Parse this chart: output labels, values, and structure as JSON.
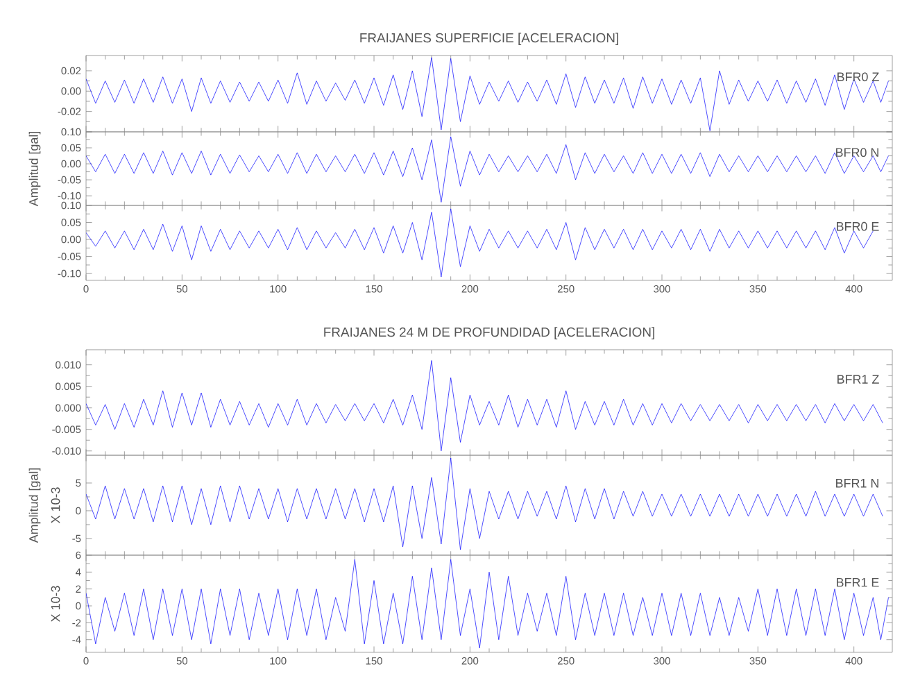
{
  "chart_data": [
    {
      "type": "line",
      "title": "FRAIJANES SUPERFICIE [ACELERACION]",
      "tick_labels": "y",
      "grid": false,
      "x": [
        0,
        5,
        10,
        15,
        20,
        25,
        30,
        35,
        40,
        45,
        50,
        55,
        60,
        65,
        70,
        75,
        80,
        85,
        90,
        95,
        100,
        105,
        110,
        115,
        120,
        125,
        130,
        135,
        140,
        145,
        150,
        155,
        160,
        165,
        170,
        175,
        180,
        185,
        190,
        195,
        200,
        205,
        210,
        215,
        220,
        225,
        230,
        235,
        240,
        245,
        250,
        255,
        260,
        265,
        270,
        275,
        280,
        285,
        290,
        295,
        300,
        305,
        310,
        315,
        320,
        325,
        330,
        335,
        340,
        345,
        350,
        355,
        360,
        365,
        370,
        375,
        380,
        385,
        390,
        395,
        400,
        405,
        410,
        414,
        418
      ],
      "xlim": [
        0,
        420
      ],
      "xticks": [
        0,
        50,
        100,
        150,
        200,
        250,
        300,
        350,
        400
      ],
      "ylim": [
        -0.04,
        0.035
      ],
      "yticks": [
        {
          "value": -0.04,
          "label": null
        },
        {
          "value": -0.02,
          "label": "-0.02"
        },
        {
          "value": 0,
          "label": "0.00"
        },
        {
          "value": 0.02,
          "label": "0.02"
        }
      ],
      "series": [
        {
          "name": "BFR0 Z",
          "color": "#0000ff",
          "values": [
            0.012,
            -0.012,
            0.01,
            -0.011,
            0.011,
            -0.012,
            0.012,
            -0.011,
            0.014,
            -0.012,
            0.012,
            -0.02,
            0.013,
            -0.012,
            0.01,
            -0.011,
            0.009,
            -0.01,
            0.009,
            -0.01,
            0.011,
            -0.012,
            0.018,
            -0.013,
            0.01,
            -0.01,
            0.008,
            -0.009,
            0.011,
            -0.012,
            0.013,
            -0.014,
            0.016,
            -0.018,
            0.02,
            -0.025,
            0.033,
            -0.038,
            0.032,
            -0.03,
            0.015,
            -0.013,
            0.009,
            -0.01,
            0.01,
            -0.011,
            0.009,
            -0.01,
            0.011,
            -0.013,
            0.017,
            -0.016,
            0.014,
            -0.012,
            0.011,
            -0.012,
            0.013,
            -0.017,
            0.014,
            -0.012,
            0.012,
            -0.013,
            0.011,
            -0.012,
            0.013,
            -0.039,
            0.02,
            -0.013,
            0.011,
            -0.01,
            0.01,
            -0.01,
            0.011,
            -0.012,
            0.01,
            -0.011,
            0.012,
            -0.014,
            0.016,
            -0.018,
            0.012,
            -0.011,
            0.01,
            -0.011,
            0.01
          ]
        }
      ]
    },
    {
      "type": "line",
      "ylabel": "Amplitud [gal]",
      "tick_labels": "y",
      "grid": false,
      "x": [
        0,
        5,
        10,
        15,
        20,
        25,
        30,
        35,
        40,
        45,
        50,
        55,
        60,
        65,
        70,
        75,
        80,
        85,
        90,
        95,
        100,
        105,
        110,
        115,
        120,
        125,
        130,
        135,
        140,
        145,
        150,
        155,
        160,
        165,
        170,
        175,
        180,
        185,
        190,
        195,
        200,
        205,
        210,
        215,
        220,
        225,
        230,
        235,
        240,
        245,
        250,
        255,
        260,
        265,
        270,
        275,
        280,
        285,
        290,
        295,
        300,
        305,
        310,
        315,
        320,
        325,
        330,
        335,
        340,
        345,
        350,
        355,
        360,
        365,
        370,
        375,
        380,
        385,
        390,
        395,
        400,
        405,
        410,
        414,
        418
      ],
      "xlim": [
        0,
        420
      ],
      "xticks": [
        0,
        50,
        100,
        150,
        200,
        250,
        300,
        350,
        400
      ],
      "ylim": [
        -0.13,
        0.1
      ],
      "yticks": [
        {
          "value": -0.1,
          "label": "-0.10"
        },
        {
          "value": -0.05,
          "label": "-0.05"
        },
        {
          "value": 0,
          "label": "0.00"
        },
        {
          "value": 0.05,
          "label": "0.05"
        },
        {
          "value": 0.1,
          "label": "0.10"
        }
      ],
      "series": [
        {
          "name": "BFR0 N",
          "color": "#0000ff",
          "values": [
            0.025,
            -0.025,
            0.03,
            -0.03,
            0.03,
            -0.03,
            0.035,
            -0.03,
            0.04,
            -0.035,
            0.035,
            -0.03,
            0.04,
            -0.035,
            0.03,
            -0.03,
            0.028,
            -0.025,
            0.025,
            -0.025,
            0.03,
            -0.03,
            0.035,
            -0.03,
            0.03,
            -0.025,
            0.025,
            -0.025,
            0.03,
            -0.03,
            0.035,
            -0.035,
            0.04,
            -0.04,
            0.05,
            -0.05,
            0.075,
            -0.12,
            0.085,
            -0.07,
            0.04,
            -0.035,
            0.03,
            -0.025,
            0.025,
            -0.025,
            0.025,
            -0.025,
            0.03,
            -0.03,
            0.06,
            -0.05,
            0.035,
            -0.03,
            0.03,
            -0.025,
            0.025,
            -0.03,
            0.035,
            -0.03,
            0.03,
            -0.03,
            0.03,
            -0.03,
            0.035,
            -0.04,
            0.03,
            -0.025,
            0.025,
            -0.025,
            0.025,
            -0.025,
            0.025,
            -0.025,
            0.025,
            -0.025,
            0.025,
            -0.03,
            0.035,
            -0.03,
            0.025,
            -0.025,
            0.025,
            -0.025,
            0.025
          ]
        }
      ]
    },
    {
      "type": "line",
      "grid": false,
      "x": [
        0,
        5,
        10,
        15,
        20,
        25,
        30,
        35,
        40,
        45,
        50,
        55,
        60,
        65,
        70,
        75,
        80,
        85,
        90,
        95,
        100,
        105,
        110,
        115,
        120,
        125,
        130,
        135,
        140,
        145,
        150,
        155,
        160,
        165,
        170,
        175,
        180,
        185,
        190,
        195,
        200,
        205,
        210,
        215,
        220,
        225,
        230,
        235,
        240,
        245,
        250,
        255,
        260,
        265,
        270,
        275,
        280,
        285,
        290,
        295,
        300,
        305,
        310,
        315,
        320,
        325,
        330,
        335,
        340,
        345,
        350,
        355,
        360,
        365,
        370,
        375,
        380,
        385,
        390,
        395,
        400,
        405,
        410
      ],
      "xlim": [
        0,
        420
      ],
      "xticks": [
        0,
        50,
        100,
        150,
        200,
        250,
        300,
        350,
        400
      ],
      "ylim": [
        -0.12,
        0.1
      ],
      "yticks": [
        {
          "value": -0.1,
          "label": "-0.10"
        },
        {
          "value": -0.05,
          "label": "-0.05"
        },
        {
          "value": 0,
          "label": "0.00"
        },
        {
          "value": 0.05,
          "label": "0.05"
        },
        {
          "value": 0.1,
          "label": "0.10"
        }
      ],
      "series": [
        {
          "name": "BFR0 E",
          "color": "#0000ff",
          "values": [
            0.02,
            -0.02,
            0.025,
            -0.025,
            0.025,
            -0.03,
            0.03,
            -0.03,
            0.045,
            -0.035,
            0.04,
            -0.06,
            0.04,
            -0.035,
            0.03,
            -0.03,
            0.025,
            -0.025,
            0.025,
            -0.025,
            0.03,
            -0.03,
            0.035,
            -0.03,
            0.025,
            -0.025,
            0.02,
            -0.025,
            0.03,
            -0.03,
            0.035,
            -0.04,
            0.04,
            -0.04,
            0.05,
            -0.06,
            0.08,
            -0.11,
            0.09,
            -0.08,
            0.04,
            -0.035,
            0.03,
            -0.025,
            0.025,
            -0.025,
            0.025,
            -0.025,
            0.03,
            -0.03,
            0.05,
            -0.06,
            0.035,
            -0.03,
            0.03,
            -0.025,
            0.03,
            -0.03,
            0.03,
            -0.03,
            0.025,
            -0.025,
            0.03,
            -0.03,
            0.03,
            -0.035,
            0.03,
            -0.025,
            0.025,
            -0.025,
            0.025,
            -0.025,
            0.025,
            -0.025,
            0.025,
            -0.025,
            0.025,
            -0.03,
            0.035,
            -0.04,
            0.025,
            -0.025,
            0.025
          ]
        }
      ]
    },
    {
      "type": "line",
      "title": "FRAIJANES 24 M DE PROFUNDIDAD [ACELERACION]",
      "tick_labels": "y",
      "grid": false,
      "x": [
        0,
        5,
        10,
        15,
        20,
        25,
        30,
        35,
        40,
        45,
        50,
        55,
        60,
        65,
        70,
        75,
        80,
        85,
        90,
        95,
        100,
        105,
        110,
        115,
        120,
        125,
        130,
        135,
        140,
        145,
        150,
        155,
        160,
        165,
        170,
        175,
        180,
        185,
        190,
        195,
        200,
        205,
        210,
        215,
        220,
        225,
        230,
        235,
        240,
        245,
        250,
        255,
        260,
        265,
        270,
        275,
        280,
        285,
        290,
        295,
        300,
        305,
        310,
        315,
        320,
        325,
        330,
        335,
        340,
        345,
        350,
        355,
        360,
        365,
        370,
        375,
        380,
        385,
        390,
        395,
        400,
        405,
        410,
        415
      ],
      "xlim": [
        0,
        420
      ],
      "xticks": [
        0,
        50,
        100,
        150,
        200,
        250,
        300,
        350,
        400
      ],
      "ylim": [
        -0.011,
        0.0135
      ],
      "yticks": [
        {
          "value": -0.01,
          "label": "-0.010"
        },
        {
          "value": -0.005,
          "label": "-0.005"
        },
        {
          "value": 0,
          "label": "0.000"
        },
        {
          "value": 0.005,
          "label": "0.005"
        },
        {
          "value": 0.01,
          "label": "0.010"
        }
      ],
      "series": [
        {
          "name": "BFR1 Z",
          "color": "#0000ff",
          "values": [
            0.001,
            -0.004,
            0.0008,
            -0.005,
            0.001,
            -0.0045,
            0.002,
            -0.004,
            0.004,
            -0.0045,
            0.0035,
            -0.004,
            0.0035,
            -0.0045,
            0.002,
            -0.004,
            0.0015,
            -0.004,
            0.001,
            -0.0045,
            0.001,
            -0.004,
            0.002,
            -0.004,
            0.001,
            -0.0035,
            0.0008,
            -0.003,
            0.001,
            -0.003,
            0.001,
            -0.0035,
            0.002,
            -0.004,
            0.003,
            -0.005,
            0.011,
            -0.01,
            0.007,
            -0.008,
            0.003,
            -0.004,
            0.0015,
            -0.004,
            0.003,
            -0.0045,
            0.002,
            -0.004,
            0.002,
            -0.0045,
            0.004,
            -0.005,
            0.0015,
            -0.004,
            0.0015,
            -0.004,
            0.002,
            -0.004,
            0.001,
            -0.004,
            0.001,
            -0.0035,
            0.001,
            -0.003,
            0.0008,
            -0.003,
            0.0008,
            -0.003,
            0.0008,
            -0.0035,
            0.0008,
            -0.003,
            0.0008,
            -0.003,
            0.0008,
            -0.003,
            0.0008,
            -0.0035,
            0.001,
            -0.003,
            0.0008,
            -0.003,
            0.0008,
            -0.0035
          ]
        }
      ]
    },
    {
      "type": "line",
      "ylabel": "Amplitud [gal]",
      "annotations": [
        "X 10-3"
      ],
      "tick_labels": "y",
      "grid": false,
      "x": [
        0,
        5,
        10,
        15,
        20,
        25,
        30,
        35,
        40,
        45,
        50,
        55,
        60,
        65,
        70,
        75,
        80,
        85,
        90,
        95,
        100,
        105,
        110,
        115,
        120,
        125,
        130,
        135,
        140,
        145,
        150,
        155,
        160,
        165,
        170,
        175,
        180,
        185,
        190,
        195,
        200,
        205,
        210,
        215,
        220,
        225,
        230,
        235,
        240,
        245,
        250,
        255,
        260,
        265,
        270,
        275,
        280,
        285,
        290,
        295,
        300,
        305,
        310,
        315,
        320,
        325,
        330,
        335,
        340,
        345,
        350,
        355,
        360,
        365,
        370,
        375,
        380,
        385,
        390,
        395,
        400,
        405,
        410,
        415
      ],
      "xlim": [
        0,
        420
      ],
      "xticks": [
        0,
        50,
        100,
        150,
        200,
        250,
        300,
        350,
        400
      ],
      "ylim": [
        -8,
        10
      ],
      "yticks": [
        {
          "value": -5,
          "label": "-5"
        },
        {
          "value": 0,
          "label": "0"
        },
        {
          "value": 5,
          "label": "5"
        }
      ],
      "series": [
        {
          "name": "BFR1 N",
          "color": "#0000ff",
          "values": [
            3,
            -1.5,
            4.5,
            -1.5,
            4,
            -1.5,
            4,
            -2,
            4.5,
            -2,
            4.5,
            -2.5,
            4,
            -2.5,
            4.5,
            -2,
            4.5,
            -1.5,
            4,
            -1.5,
            4,
            -2,
            4,
            -1.5,
            4,
            -1.5,
            4,
            -1.5,
            4,
            -2,
            4,
            -2,
            4.5,
            -6.5,
            4.5,
            -5,
            6,
            -6,
            9.5,
            -7,
            4,
            -5,
            3.5,
            -1.5,
            3.5,
            -1.5,
            3.5,
            -1,
            3.5,
            -1.5,
            4.5,
            -2,
            4,
            -1.5,
            4,
            -1.5,
            3.5,
            -1,
            3.5,
            -1,
            3,
            -1,
            3,
            -1,
            3,
            -1,
            3,
            -1,
            3,
            -1,
            3,
            -1,
            3,
            -1,
            3,
            -1,
            3.5,
            -1,
            3,
            -1,
            3,
            -1,
            3,
            -1
          ]
        }
      ]
    },
    {
      "type": "line",
      "annotations": [
        "X 10-3"
      ],
      "grid": false,
      "x": [
        0,
        5,
        10,
        15,
        20,
        25,
        30,
        35,
        40,
        45,
        50,
        55,
        60,
        65,
        70,
        75,
        80,
        85,
        90,
        95,
        100,
        105,
        110,
        115,
        120,
        125,
        130,
        135,
        140,
        145,
        150,
        155,
        160,
        165,
        170,
        175,
        180,
        185,
        190,
        195,
        200,
        205,
        210,
        215,
        220,
        225,
        230,
        235,
        240,
        245,
        250,
        255,
        260,
        265,
        270,
        275,
        280,
        285,
        290,
        295,
        300,
        305,
        310,
        315,
        320,
        325,
        330,
        335,
        340,
        345,
        350,
        355,
        360,
        365,
        370,
        375,
        380,
        385,
        390,
        395,
        400,
        405,
        410,
        414,
        418
      ],
      "xlim": [
        0,
        420
      ],
      "xticks": [
        0,
        50,
        100,
        150,
        200,
        250,
        300,
        350,
        400
      ],
      "ylim": [
        -5.5,
        6
      ],
      "yticks": [
        -4,
        -2,
        0,
        2,
        4,
        6
      ],
      "series": [
        {
          "name": "BFR1 E",
          "color": "#0000ff",
          "values": [
            1.5,
            -4.5,
            1,
            -3,
            1.5,
            -3.5,
            2,
            -4,
            2,
            -3.5,
            2,
            -4,
            2,
            -4.5,
            2,
            -3.5,
            2,
            -4,
            1.5,
            -3.5,
            2,
            -4,
            2,
            -3.5,
            2,
            -4,
            1,
            -3,
            5.5,
            -4.5,
            3,
            -4.5,
            1.5,
            -4.5,
            3.5,
            -4,
            4.5,
            -4,
            5.5,
            -3.5,
            2,
            -5,
            4,
            -4,
            3.5,
            -3.5,
            1.5,
            -3,
            1.5,
            -3.5,
            3.5,
            -4,
            1.5,
            -3.5,
            1.5,
            -3.5,
            1.5,
            -3.5,
            1,
            -3.5,
            1.5,
            -3.5,
            1.5,
            -3.5,
            1.5,
            -3.5,
            1,
            -3.5,
            1,
            -3,
            2,
            -3.5,
            2,
            -3.5,
            2,
            -3.5,
            2,
            -3.5,
            2,
            -4,
            1.5,
            -3.5,
            1,
            -4,
            1
          ]
        }
      ]
    }
  ]
}
